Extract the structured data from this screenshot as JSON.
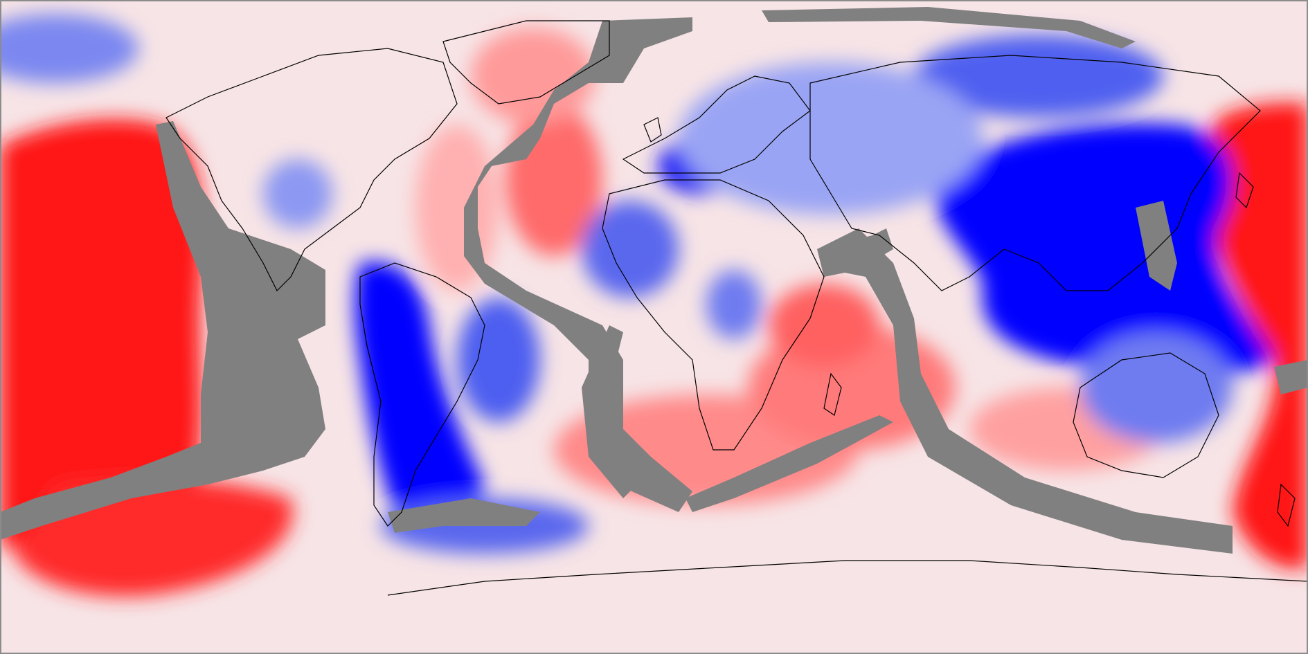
{
  "map": {
    "projection": "equirectangular",
    "extent": "global",
    "colormap": {
      "deep_negative": "#0000ff",
      "negative": "#4c5cf0",
      "slight_negative": "#b8c0f8",
      "neutral": "#f6f2f4",
      "slight_positive": "#fbd2d2",
      "positive": "#ff6a6a",
      "strong_positive": "#ff1010",
      "masked": "#808080",
      "coastline": "#000000"
    },
    "features": [
      "velocity-anomaly-field",
      "plate-boundary-mask",
      "coastlines"
    ],
    "labels": {}
  }
}
